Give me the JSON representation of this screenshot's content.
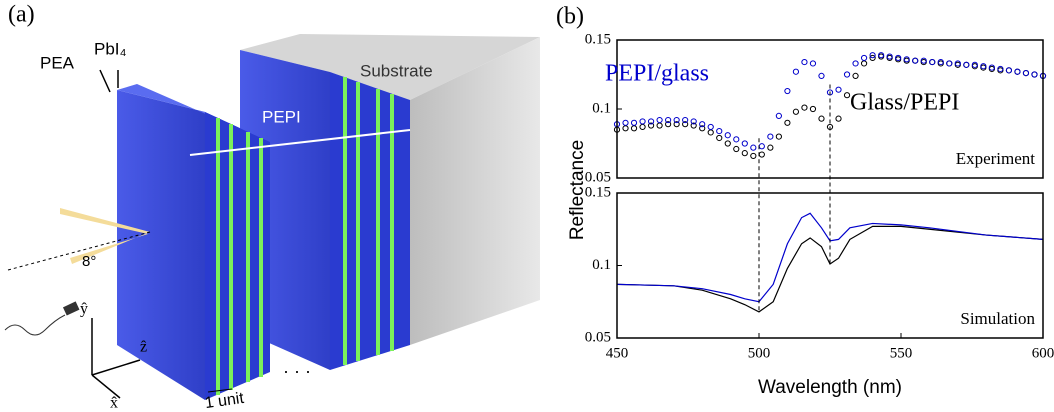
{
  "diagram": {
    "label": "(a)",
    "pea": "PEA",
    "pbi": "PbI₄",
    "substrate": "Substrate",
    "pepi": "PEPI",
    "angle": "8°",
    "y_axis": "ŷ",
    "z_axis": "ẑ",
    "x_axis": "x̂",
    "unit": "1 unit",
    "dots": "· · ·"
  },
  "panel_label": "(b)",
  "chart_data": [
    {
      "type": "scatter",
      "ylabel": "Reflectance",
      "annotations": [
        "Experiment"
      ],
      "xlim": [
        450,
        600
      ],
      "ylim": [
        0.05,
        0.15
      ],
      "yticks": [
        0.05,
        0.1,
        0.15
      ],
      "x": [
        450,
        453,
        456,
        459,
        462,
        465,
        468,
        471,
        474,
        477,
        480,
        483,
        486,
        489,
        492,
        495,
        498,
        501,
        504,
        507,
        510,
        513,
        516,
        519,
        522,
        525,
        528,
        531,
        534,
        537,
        540,
        543,
        546,
        549,
        552,
        555,
        558,
        561,
        564,
        567,
        570,
        573,
        576,
        579,
        582,
        585,
        588,
        591,
        594,
        597,
        600
      ],
      "series": [
        {
          "name": "Glass/PEPI",
          "color": "#000000",
          "values": [
            0.085,
            0.086,
            0.086,
            0.087,
            0.088,
            0.088,
            0.089,
            0.089,
            0.089,
            0.088,
            0.086,
            0.083,
            0.079,
            0.075,
            0.071,
            0.068,
            0.066,
            0.067,
            0.072,
            0.08,
            0.09,
            0.098,
            0.101,
            0.1,
            0.093,
            0.087,
            0.093,
            0.11,
            0.124,
            0.133,
            0.137,
            0.138,
            0.137,
            0.136,
            0.135,
            0.135,
            0.134,
            0.134,
            0.133,
            0.133,
            0.132,
            0.132,
            0.131,
            0.13,
            0.129,
            0.128,
            0.128,
            0.127,
            0.126,
            0.125,
            0.124
          ]
        },
        {
          "name": "PEPI/glass",
          "color": "#0000cc",
          "values": [
            0.089,
            0.09,
            0.09,
            0.091,
            0.091,
            0.092,
            0.092,
            0.092,
            0.092,
            0.091,
            0.089,
            0.087,
            0.084,
            0.081,
            0.078,
            0.075,
            0.072,
            0.073,
            0.08,
            0.095,
            0.113,
            0.127,
            0.134,
            0.133,
            0.124,
            0.112,
            0.114,
            0.125,
            0.133,
            0.137,
            0.139,
            0.139,
            0.138,
            0.137,
            0.136,
            0.135,
            0.135,
            0.134,
            0.134,
            0.133,
            0.133,
            0.132,
            0.132,
            0.131,
            0.13,
            0.129,
            0.128,
            0.127,
            0.126,
            0.125,
            0.124
          ]
        }
      ]
    },
    {
      "type": "line",
      "xlabel": "Wavelength (nm)",
      "annotations": [
        "Simulation"
      ],
      "xlim": [
        450,
        600
      ],
      "ylim": [
        0.05,
        0.15
      ],
      "yticks": [
        0.05,
        0.1,
        0.15
      ],
      "xticks": [
        450,
        500,
        550,
        600
      ],
      "vlines": [
        500,
        525
      ],
      "x": [
        450,
        470,
        480,
        490,
        495,
        500,
        505,
        510,
        515,
        518,
        522,
        525,
        528,
        532,
        540,
        550,
        560,
        580,
        600
      ],
      "series": [
        {
          "color": "#000000",
          "values": [
            0.087,
            0.086,
            0.083,
            0.077,
            0.073,
            0.068,
            0.075,
            0.098,
            0.115,
            0.119,
            0.113,
            0.101,
            0.105,
            0.118,
            0.127,
            0.127,
            0.125,
            0.121,
            0.118
          ]
        },
        {
          "color": "#0000cc",
          "values": [
            0.087,
            0.086,
            0.084,
            0.08,
            0.077,
            0.075,
            0.087,
            0.115,
            0.133,
            0.136,
            0.126,
            0.117,
            0.118,
            0.126,
            0.129,
            0.128,
            0.126,
            0.121,
            0.118
          ]
        }
      ]
    }
  ]
}
